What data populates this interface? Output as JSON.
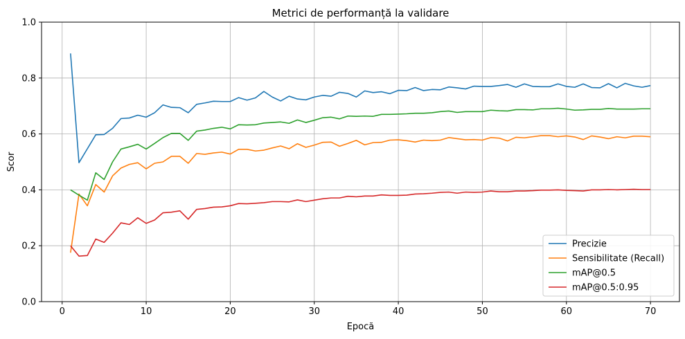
{
  "chart_data": {
    "type": "line",
    "title": "Metrici de performanță la validare",
    "xlabel": "Epocă",
    "ylabel": "Scor",
    "xlim": [
      -2.45,
      73.45
    ],
    "ylim": [
      0.0,
      1.0
    ],
    "xticks": [
      0,
      10,
      20,
      30,
      40,
      50,
      60,
      70
    ],
    "yticks": [
      0.0,
      0.2,
      0.4,
      0.6,
      0.8,
      1.0
    ],
    "xtick_labels": [
      "0",
      "10",
      "20",
      "30",
      "40",
      "50",
      "60",
      "70"
    ],
    "ytick_labels": [
      "0.0",
      "0.2",
      "0.4",
      "0.6",
      "0.8",
      "1.0"
    ],
    "grid": true,
    "legend_position": "lower-right",
    "x": [
      1,
      2,
      3,
      4,
      5,
      6,
      7,
      8,
      9,
      10,
      11,
      12,
      13,
      14,
      15,
      16,
      17,
      18,
      19,
      20,
      21,
      22,
      23,
      24,
      25,
      26,
      27,
      28,
      29,
      30,
      31,
      32,
      33,
      34,
      35,
      36,
      37,
      38,
      39,
      40,
      41,
      42,
      43,
      44,
      45,
      46,
      47,
      48,
      49,
      50,
      51,
      52,
      53,
      54,
      55,
      56,
      57,
      58,
      59,
      60,
      61,
      62,
      63,
      64,
      65,
      66,
      67,
      68,
      69,
      70
    ],
    "series": [
      {
        "name": "Precizie",
        "color": "#1f77b4",
        "values": [
          0.888,
          0.497,
          0.547,
          0.597,
          0.598,
          0.62,
          0.655,
          0.657,
          0.667,
          0.66,
          0.676,
          0.704,
          0.695,
          0.694,
          0.676,
          0.706,
          0.711,
          0.717,
          0.716,
          0.716,
          0.73,
          0.721,
          0.729,
          0.752,
          0.732,
          0.718,
          0.735,
          0.725,
          0.722,
          0.732,
          0.738,
          0.735,
          0.749,
          0.745,
          0.732,
          0.754,
          0.748,
          0.751,
          0.744,
          0.756,
          0.755,
          0.766,
          0.755,
          0.759,
          0.758,
          0.768,
          0.765,
          0.761,
          0.771,
          0.77,
          0.77,
          0.773,
          0.777,
          0.767,
          0.779,
          0.77,
          0.769,
          0.769,
          0.779,
          0.77,
          0.767,
          0.779,
          0.766,
          0.765,
          0.78,
          0.765,
          0.781,
          0.772,
          0.767,
          0.773
        ]
      },
      {
        "name": "Sensibilitate (Recall)",
        "color": "#ff7f0e",
        "values": [
          0.175,
          0.385,
          0.343,
          0.419,
          0.392,
          0.45,
          0.478,
          0.491,
          0.497,
          0.475,
          0.495,
          0.5,
          0.52,
          0.52,
          0.495,
          0.53,
          0.527,
          0.532,
          0.535,
          0.528,
          0.545,
          0.545,
          0.539,
          0.542,
          0.55,
          0.557,
          0.547,
          0.565,
          0.552,
          0.56,
          0.57,
          0.571,
          0.556,
          0.566,
          0.577,
          0.561,
          0.569,
          0.57,
          0.578,
          0.579,
          0.576,
          0.571,
          0.578,
          0.576,
          0.578,
          0.587,
          0.583,
          0.579,
          0.58,
          0.578,
          0.587,
          0.585,
          0.575,
          0.588,
          0.586,
          0.59,
          0.594,
          0.594,
          0.59,
          0.593,
          0.589,
          0.58,
          0.593,
          0.589,
          0.583,
          0.59,
          0.586,
          0.592,
          0.592,
          0.59
        ]
      },
      {
        "name": "mAP@0.5",
        "color": "#2ca02c",
        "values": [
          0.4,
          0.381,
          0.363,
          0.461,
          0.437,
          0.5,
          0.546,
          0.554,
          0.563,
          0.546,
          0.566,
          0.587,
          0.602,
          0.602,
          0.577,
          0.61,
          0.614,
          0.62,
          0.624,
          0.618,
          0.633,
          0.632,
          0.633,
          0.639,
          0.641,
          0.643,
          0.638,
          0.65,
          0.641,
          0.649,
          0.658,
          0.66,
          0.654,
          0.664,
          0.663,
          0.664,
          0.663,
          0.67,
          0.67,
          0.671,
          0.672,
          0.674,
          0.674,
          0.676,
          0.68,
          0.682,
          0.677,
          0.68,
          0.68,
          0.68,
          0.685,
          0.683,
          0.682,
          0.687,
          0.687,
          0.686,
          0.69,
          0.69,
          0.692,
          0.689,
          0.685,
          0.686,
          0.688,
          0.688,
          0.691,
          0.689,
          0.689,
          0.689,
          0.69,
          0.69
        ]
      },
      {
        "name": "mAP@0.5:0.95",
        "color": "#d62728",
        "values": [
          0.2,
          0.163,
          0.165,
          0.224,
          0.212,
          0.245,
          0.282,
          0.276,
          0.3,
          0.28,
          0.292,
          0.318,
          0.32,
          0.325,
          0.295,
          0.33,
          0.333,
          0.338,
          0.339,
          0.343,
          0.351,
          0.35,
          0.352,
          0.354,
          0.358,
          0.358,
          0.357,
          0.364,
          0.358,
          0.363,
          0.368,
          0.371,
          0.371,
          0.377,
          0.375,
          0.378,
          0.378,
          0.382,
          0.38,
          0.38,
          0.381,
          0.385,
          0.386,
          0.388,
          0.391,
          0.392,
          0.388,
          0.392,
          0.391,
          0.392,
          0.396,
          0.393,
          0.393,
          0.396,
          0.396,
          0.397,
          0.399,
          0.399,
          0.4,
          0.398,
          0.397,
          0.396,
          0.4,
          0.4,
          0.401,
          0.4,
          0.401,
          0.402,
          0.401,
          0.401
        ]
      }
    ]
  }
}
